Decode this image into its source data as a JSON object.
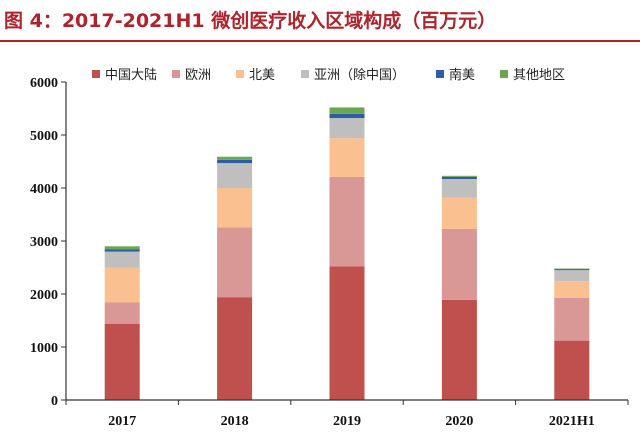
{
  "header": {
    "title": "图 4：2017-2021H1 微创医疗收入区域构成（百万元）"
  },
  "colors": {
    "title_red": "#b0232a",
    "axis": "#333333"
  },
  "chart_data": {
    "type": "bar",
    "stacked": true,
    "title": "图 4：2017-2021H1 微创医疗收入区域构成（百万元）",
    "xlabel": "",
    "ylabel": "",
    "ylim": [
      0,
      6000
    ],
    "yticks": [
      "0",
      "1000",
      "2000",
      "3000",
      "4000",
      "5000",
      "6000"
    ],
    "categories": [
      "2017",
      "2018",
      "2019",
      "2020",
      "2021H1"
    ],
    "grid": false,
    "legend_position": "top",
    "series": [
      {
        "name": "中国大陆",
        "color": "#c0504d",
        "values": [
          1440,
          1940,
          2520,
          1890,
          1120
        ]
      },
      {
        "name": "欧洲",
        "color": "#d99795",
        "values": [
          400,
          1320,
          1690,
          1340,
          810
        ]
      },
      {
        "name": "北美",
        "color": "#fac090",
        "values": [
          660,
          740,
          730,
          590,
          310
        ]
      },
      {
        "name": "亚洲（除中国）",
        "color": "#bfbfbf",
        "values": [
          300,
          470,
          380,
          350,
          210
        ]
      },
      {
        "name": "南美",
        "color": "#2e5ba6",
        "values": [
          40,
          60,
          80,
          40,
          20
        ]
      },
      {
        "name": "其他地区",
        "color": "#6aa84f",
        "values": [
          60,
          60,
          120,
          20,
          10
        ]
      }
    ]
  }
}
